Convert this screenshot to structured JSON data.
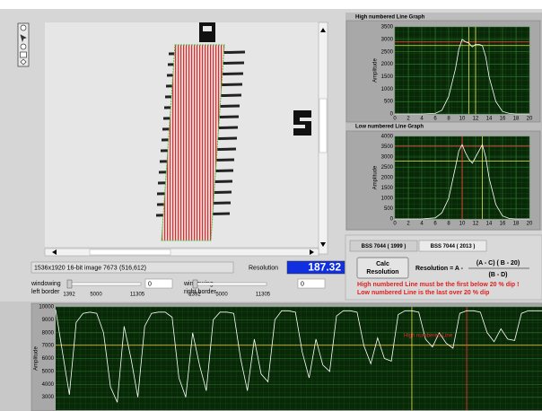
{
  "chart_data": [
    {
      "type": "line",
      "title": "High numbered Line Graph",
      "ylabel": "Amplitude",
      "color": "#ffffff",
      "x": [
        0,
        2,
        4,
        6,
        7,
        8,
        9,
        9.5,
        10,
        10.5,
        11,
        11.5,
        12,
        12.5,
        13,
        13.5,
        14,
        15,
        16,
        17,
        18,
        20
      ],
      "values": [
        0,
        0,
        0,
        20,
        150,
        700,
        1800,
        2600,
        3000,
        2900,
        2850,
        2700,
        2800,
        2800,
        2750,
        2300,
        1500,
        500,
        100,
        20,
        0,
        0
      ],
      "xlim": [
        0,
        20
      ],
      "ylim": [
        0,
        3500
      ],
      "xticks": [
        0,
        2,
        4,
        6,
        8,
        10,
        12,
        14,
        16,
        18,
        20
      ],
      "yticks": [
        0,
        500,
        1000,
        1500,
        2000,
        2500,
        3000,
        3500
      ],
      "grid": true,
      "cursors": [
        {
          "orientation": "h",
          "value": 2900,
          "color": "#ff3030"
        },
        {
          "orientation": "h",
          "value": 2750,
          "color": "#e8e850"
        },
        {
          "orientation": "v",
          "value": 11,
          "color": "#e8e850"
        },
        {
          "orientation": "v",
          "value": 12,
          "color": "#e8e850"
        }
      ]
    },
    {
      "type": "line",
      "title": "Low numbered Line Graph",
      "ylabel": "Amplitude",
      "color": "#ffffff",
      "x": [
        0,
        2,
        4,
        6,
        7,
        8,
        9,
        9.5,
        10,
        10.5,
        11,
        11.5,
        12,
        12.5,
        13,
        13.5,
        14,
        15,
        16,
        17,
        18,
        20
      ],
      "values": [
        0,
        0,
        0,
        50,
        300,
        1000,
        2500,
        3300,
        3600,
        3200,
        2900,
        2700,
        3000,
        3300,
        3600,
        3000,
        2000,
        700,
        150,
        20,
        0,
        0
      ],
      "xlim": [
        0,
        20
      ],
      "ylim": [
        0,
        4000
      ],
      "xticks": [
        0,
        2,
        4,
        6,
        8,
        10,
        12,
        14,
        16,
        18,
        20
      ],
      "yticks": [
        0,
        500,
        1000,
        1500,
        2000,
        2500,
        3000,
        3500,
        4000
      ],
      "grid": true,
      "cursors": [
        {
          "orientation": "h",
          "value": 3550,
          "color": "#ff3030"
        },
        {
          "orientation": "h",
          "value": 2800,
          "color": "#e8e850"
        },
        {
          "orientation": "v",
          "value": 10,
          "color": "#ff3030"
        },
        {
          "orientation": "v",
          "value": 13,
          "color": "#e8e850"
        }
      ]
    },
    {
      "type": "line",
      "ylabel": "Amplitude",
      "color": "#ffffff",
      "annotation": "High numbered Line",
      "values": [
        9800,
        6500,
        3200,
        8800,
        9500,
        9600,
        9500,
        8000,
        3800,
        2600,
        8500,
        6000,
        3000,
        8500,
        9500,
        9600,
        9600,
        9200,
        4500,
        3000,
        8000,
        5500,
        3500,
        9000,
        9600,
        9600,
        9500,
        6000,
        3500,
        7500,
        4800,
        4200,
        9000,
        9700,
        9700,
        9600,
        6500,
        4500,
        7500,
        5500,
        5000,
        9300,
        9700,
        9700,
        9600,
        7000,
        5600,
        7600,
        6000,
        5800,
        9400,
        9700,
        9700,
        9600,
        7500,
        6900,
        8000,
        7200,
        6800,
        9500,
        9700,
        9700,
        9600,
        8000,
        7300,
        8300,
        7500,
        7400,
        9500,
        9700,
        9700,
        9700
      ],
      "ylim": [
        2000,
        10000
      ],
      "yticks": [
        3000,
        4000,
        5000,
        6000,
        7000,
        8000,
        9000,
        10000
      ],
      "grid": true,
      "cursors": [
        {
          "orientation": "h",
          "value": 7050,
          "color": "#e8a030"
        },
        {
          "orientation": "vi",
          "value": 52,
          "color": "#e8e850"
        },
        {
          "orientation": "vi",
          "value": 60,
          "color": "#ff3030"
        }
      ]
    }
  ],
  "status": {
    "image_info": "1536x1920 16-bit image 7673",
    "coords": "(516,612)",
    "resolution_label": "Resolution",
    "resolution_value": "187.32"
  },
  "sliders": [
    {
      "label": [
        "windowing",
        "left border"
      ],
      "ticks": [
        1392,
        5000,
        11305
      ],
      "value": 0
    },
    {
      "label": [
        "windowing",
        "right border"
      ],
      "ticks": [
        1392,
        5000,
        11305
      ],
      "value": 0
    }
  ],
  "tabs": [
    "BSS 7044 ( 1999 )",
    "BSS 7044 ( 2013 )"
  ],
  "button": [
    "Calc",
    "Resolution"
  ],
  "formula": {
    "lhs": "Resolution = A -",
    "numerator": "(A - C) ( B - 20)",
    "denominator": "(B - D)"
  },
  "notes": [
    "High numbered Line must be the first below 20 % dip !",
    "Low numbered Line is the last over 20 % dip"
  ]
}
